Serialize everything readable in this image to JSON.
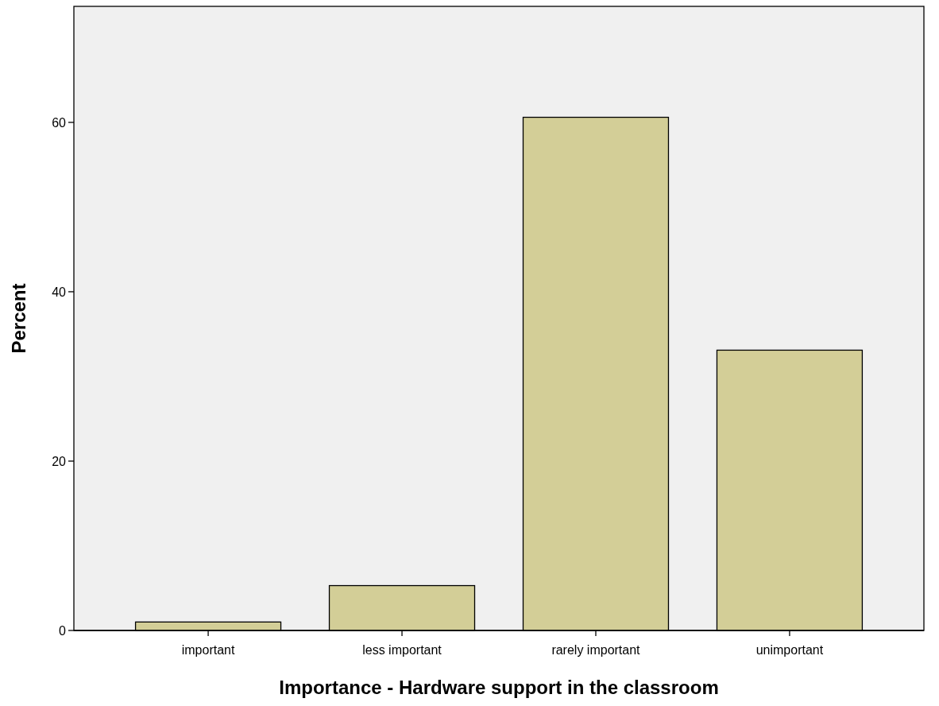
{
  "chart_data": {
    "type": "bar",
    "xlabel": "Importance - Hardware support in the classroom",
    "ylabel": "Percent",
    "categories": [
      "important",
      "less important",
      "rarely important",
      "unimportant"
    ],
    "values": [
      1.0,
      5.3,
      60.6,
      33.1
    ],
    "color": "#d3ce97",
    "ylim": [
      0,
      73.7
    ],
    "yticks": [
      0,
      20,
      40,
      60
    ],
    "grid": false
  }
}
